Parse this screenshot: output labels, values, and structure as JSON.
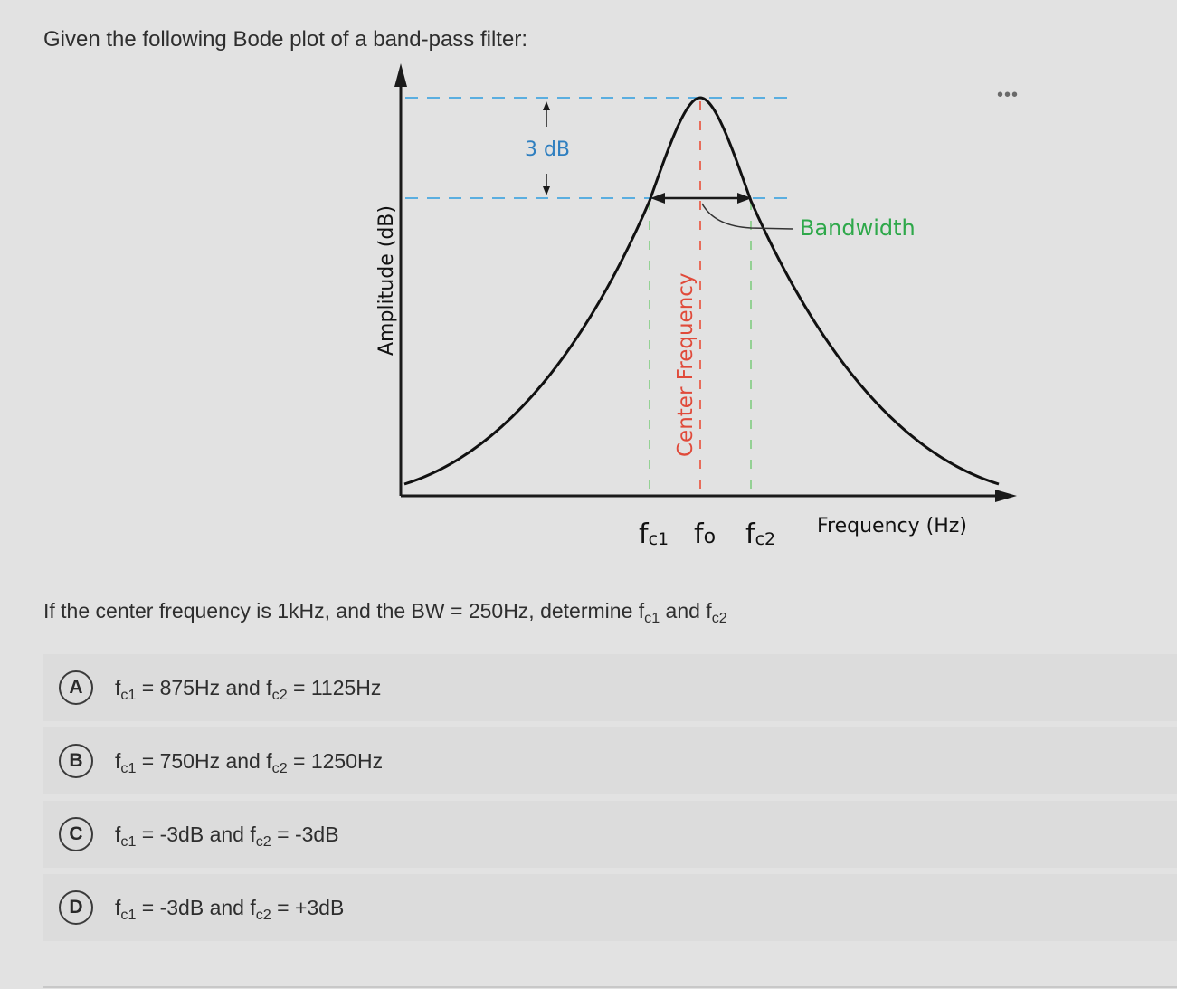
{
  "question": {
    "title": "Given the following Bode plot of a band-pass filter:",
    "prompt_main": "If the center frequency is 1kHz, and the BW = 250Hz, determine  f",
    "prompt_sub1": "c1",
    "prompt_and": " and f",
    "prompt_sub2": "c2"
  },
  "menu": {
    "more_label": "•••"
  },
  "figure": {
    "y_axis_label": "Amplitude (dB)",
    "x_axis_label": "Frequency (Hz)",
    "db_label": "3 dB",
    "bandwidth_label": "Bandwidth",
    "center_label": "Center Frequency",
    "fc1_base": "f",
    "fc1_sub": "c1",
    "fo_base": "f",
    "fo_sub": "o",
    "fc2_base": "f",
    "fc2_sub": "c2",
    "colors": {
      "blue_dash": "#5aaee0",
      "red_dash": "#e8604c",
      "green_dash": "#8ccf8c",
      "db_text": "#2f7fc0",
      "bandwidth_text": "#2ea84a",
      "center_text": "#e04a3a"
    }
  },
  "options": [
    {
      "letter": "A",
      "p1": "f",
      "s1": "c1",
      "p2": " = 875Hz and f",
      "s2": "c2",
      "p3": " = 1125Hz"
    },
    {
      "letter": "B",
      "p1": "f",
      "s1": "c1",
      "p2": " = 750Hz and  f",
      "s2": "c2",
      "p3": " = 1250Hz"
    },
    {
      "letter": "C",
      "p1": "f",
      "s1": "c1",
      "p2": " = -3dB and  f",
      "s2": "c2",
      "p3": " = -3dB"
    },
    {
      "letter": "D",
      "p1": "f",
      "s1": "c1",
      "p2": " = -3dB and  f",
      "s2": "c2",
      "p3": " = +3dB"
    }
  ]
}
